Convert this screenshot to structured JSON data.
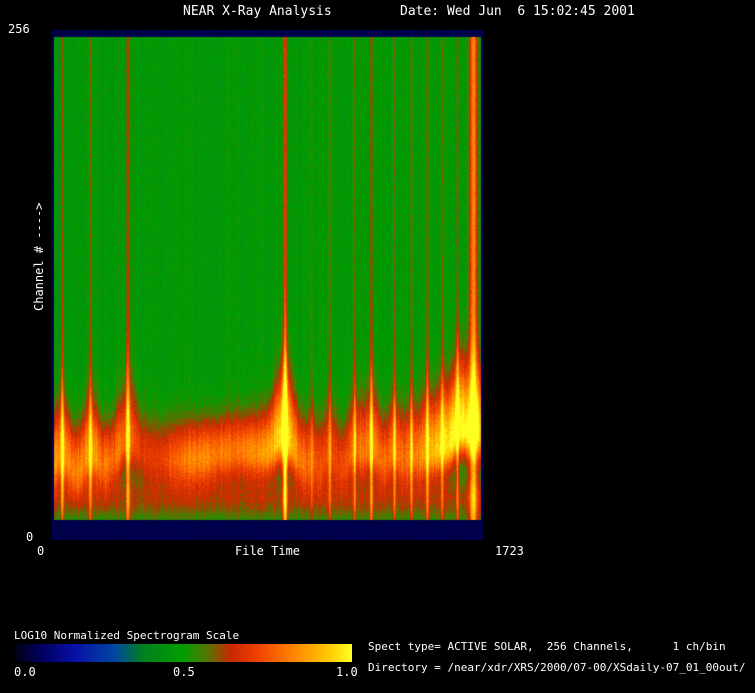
{
  "colors": {
    "background": "#000000",
    "text": "#ffffff",
    "border_navy": "#00004c"
  },
  "header": {
    "title": "NEAR X-Ray Analysis",
    "date_label": "Date: Wed Jun  6 15:02:45 2001"
  },
  "plot": {
    "y_axis_top_label": "256",
    "y_axis_bottom_label": "0",
    "y_axis_title": "Channel # ---->",
    "x_axis_left_label": "0",
    "x_axis_right_label": "1723",
    "x_axis_title": "File Time"
  },
  "scale": {
    "label": "LOG10 Normalized Spectrogram Scale",
    "ticks": [
      "0.0",
      "0.5",
      "1.0"
    ]
  },
  "info": {
    "line1": "Spect type= ACTIVE SOLAR,  256 Channels,      1 ch/bin",
    "line2": "Directory = /near/xdr/XRS/2000/07-00/XSdaily-07_01_00out/"
  },
  "chart_data": {
    "type": "heatmap",
    "title": "NEAR X-Ray Analysis",
    "xlabel": "File Time",
    "ylabel": "Channel # ---->",
    "x_range": [
      0,
      1723
    ],
    "y_range": [
      0,
      256
    ],
    "scale_label": "LOG10 Normalized Spectrogram Scale",
    "scale_range": [
      0.0,
      1.0
    ],
    "description": "Normalized log10 X-ray spectrogram: quiet background ~0.48 (green) over most channels/times; intense emission band (red/orange/yellow, values 0.7-1.0) at low channels centered near channel 40; vertical flare streaks at the listed file times; dark navy (~0.06) border bands at the top and bottom channel edges and at the left/right time edges.",
    "background_value": 0.48,
    "band": {
      "center_channel": 40,
      "center_yfrac": 0.845,
      "sigma_up": 0.075,
      "sigma_down": 0.05,
      "amplitude": 0.3,
      "sub_center_yfrac": 0.92,
      "sub_amplitude": 0.14,
      "sub_sigma": 0.045
    },
    "top_border_frac": 0.012,
    "bottom_border_frac": 0.039,
    "border_value": 0.06,
    "flares": [
      {
        "time": 40,
        "strength": 0.3,
        "width": 0.0035
      },
      {
        "time": 152,
        "strength": 0.28,
        "width": 0.0035
      },
      {
        "time": 303,
        "strength": 0.33,
        "width": 0.0045
      },
      {
        "time": 932,
        "strength": 0.48,
        "width": 0.005
      },
      {
        "time": 1040,
        "strength": 0.14,
        "width": 0.0025
      },
      {
        "time": 1111,
        "strength": 0.22,
        "width": 0.003
      },
      {
        "time": 1211,
        "strength": 0.25,
        "width": 0.003
      },
      {
        "time": 1278,
        "strength": 0.3,
        "width": 0.0035
      },
      {
        "time": 1371,
        "strength": 0.26,
        "width": 0.003
      },
      {
        "time": 1438,
        "strength": 0.22,
        "width": 0.003
      },
      {
        "time": 1502,
        "strength": 0.28,
        "width": 0.0035
      },
      {
        "time": 1562,
        "strength": 0.24,
        "width": 0.003
      },
      {
        "time": 1623,
        "strength": 0.26,
        "width": 0.003
      },
      {
        "time": 1687,
        "strength": 0.42,
        "width": 0.009,
        "flat": true
      }
    ],
    "colormap_stops": [
      {
        "t": 0.0,
        "c": [
          0,
          0,
          16
        ]
      },
      {
        "t": 0.08,
        "c": [
          0,
          0,
          96
        ]
      },
      {
        "t": 0.18,
        "c": [
          8,
          16,
          168
        ]
      },
      {
        "t": 0.3,
        "c": [
          0,
          72,
          160
        ]
      },
      {
        "t": 0.38,
        "c": [
          0,
          128,
          32
        ]
      },
      {
        "t": 0.5,
        "c": [
          0,
          160,
          0
        ]
      },
      {
        "t": 0.58,
        "c": [
          96,
          112,
          0
        ]
      },
      {
        "t": 0.64,
        "c": [
          200,
          40,
          0
        ]
      },
      {
        "t": 0.72,
        "c": [
          240,
          64,
          0
        ]
      },
      {
        "t": 0.82,
        "c": [
          255,
          128,
          0
        ]
      },
      {
        "t": 0.92,
        "c": [
          255,
          192,
          0
        ]
      },
      {
        "t": 1.0,
        "c": [
          255,
          255,
          32
        ]
      }
    ]
  }
}
